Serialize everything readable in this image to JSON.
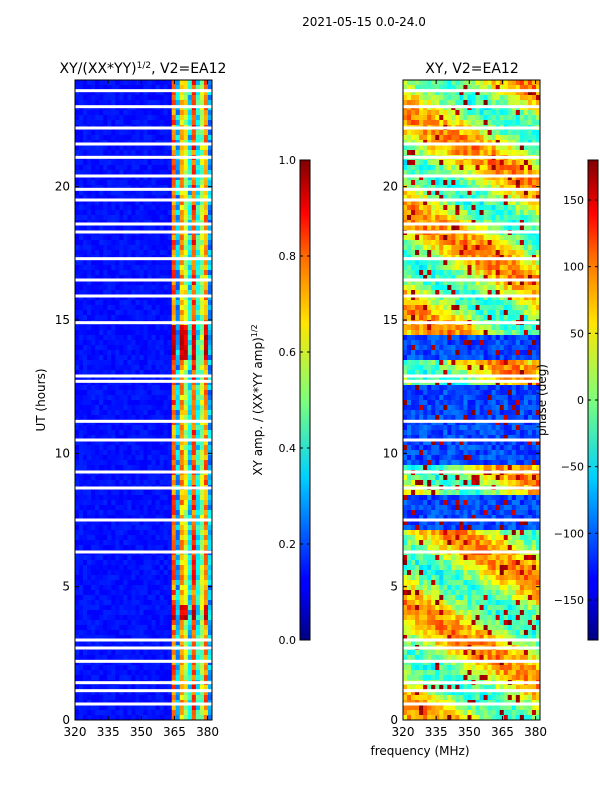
{
  "figure": {
    "suptitle": "2021-05-15 0.0-24.0",
    "xlabel": "frequency (MHz)"
  },
  "chart_data": [
    {
      "type": "heatmap",
      "title": "XY/(XX*YY)",
      "title_exponent": "1/2",
      "title_suffix": ", V2=EA12",
      "ylabel": "UT (hours)",
      "x_range": [
        320,
        382
      ],
      "y_range": [
        0,
        24
      ],
      "x_ticks": [
        320,
        335,
        350,
        365,
        380
      ],
      "y_ticks": [
        0,
        5,
        10,
        15,
        20
      ],
      "colorbar": {
        "label": "XY amp. / (XX*YY amp)",
        "label_exponent": "1/2",
        "range": [
          0.0,
          1.0
        ],
        "ticks": [
          "0.0",
          "0.2",
          "0.4",
          "0.6",
          "0.8",
          "1.0"
        ],
        "colormap": "jet"
      },
      "features": {
        "background_level": 0.12,
        "bright_band_MHz": [
          363,
          382
        ],
        "bright_band_level": 0.55,
        "hot_rows_UT": [
          [
            13.5,
            14.8
          ],
          [
            3.7,
            4.4
          ]
        ],
        "flagged_rows_UT": [
          0.6,
          1.1,
          1.4,
          2.2,
          2.7,
          3.0,
          6.3,
          7.5,
          8.7,
          9.3,
          10.5,
          11.2,
          12.7,
          12.9,
          14.9,
          15.9,
          16.5,
          17.3,
          18.3,
          18.6,
          19.5,
          19.9,
          20.4,
          21.1,
          21.6,
          22.2,
          23.0,
          23.6
        ]
      }
    },
    {
      "type": "heatmap",
      "title": "XY, V2=EA12",
      "x_range": [
        320,
        382
      ],
      "y_range": [
        0,
        24
      ],
      "x_ticks": [
        320,
        335,
        350,
        365,
        380
      ],
      "y_ticks": [
        0,
        5,
        10,
        15,
        20
      ],
      "colorbar": {
        "label": "phase (deg)",
        "range": [
          -180,
          180
        ],
        "ticks": [
          "150",
          "100",
          "50",
          "0",
          "−50",
          "−100",
          "−150"
        ],
        "tick_values": [
          150,
          100,
          50,
          0,
          -50,
          -100,
          -150
        ],
        "colormap": "jet"
      },
      "features": {
        "dominant_phase_deg": 30,
        "low_phase_blocks_UT": [
          [
            9.5,
            12.5
          ],
          [
            13.5,
            14.5
          ],
          [
            7.2,
            8.5
          ]
        ],
        "flagged_rows_UT": [
          0.6,
          1.1,
          1.4,
          2.2,
          2.7,
          3.0,
          6.3,
          7.5,
          8.7,
          9.3,
          10.5,
          11.2,
          12.7,
          12.9,
          14.9,
          15.9,
          16.5,
          17.3,
          18.3,
          18.6,
          19.5,
          19.9,
          20.4,
          21.1,
          21.6,
          22.2,
          23.0,
          23.6
        ]
      }
    }
  ]
}
